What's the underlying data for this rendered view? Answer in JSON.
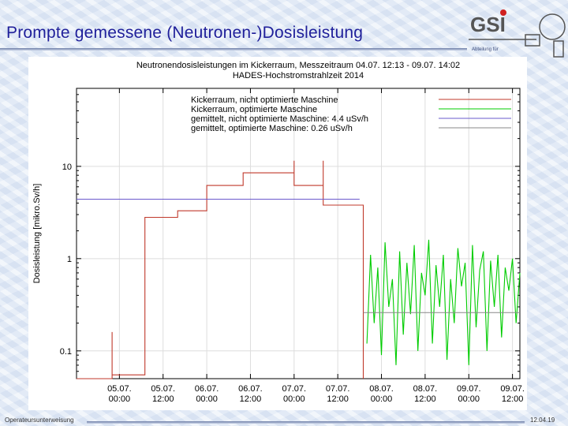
{
  "slide": {
    "title": "Prompte gemessene (Neutronen-)Dosisleistung",
    "logo_text": "GSI",
    "logo_subtext": "Abteilung für",
    "footer_left": "Operateursunterweisung",
    "footer_right": "12.04.19"
  },
  "colors": {
    "title": "#1f1f9a",
    "red_series": "#c0392b",
    "green_series": "#00cc00",
    "blue_series": "#6a5acd",
    "gray_series": "#888888"
  },
  "chart_data": {
    "type": "line",
    "title": "Neutronendosisleistungen im Kickerraum, Messzeitraum 04.07. 12:13 - 09.07. 14:02",
    "subtitle": "HADES-Hochstromstrahlzeit 2014",
    "xlabel": "",
    "ylabel": "Dosisleistung [mikro.Sv/h]",
    "yscale": "log",
    "ylim": [
      0.05,
      70
    ],
    "xlim": [
      "04.07. 12:13",
      "09.07. 14:02"
    ],
    "grid": true,
    "legend_position": "top-left",
    "x_ticks": [
      {
        "line1": "05.07.",
        "line2": "00:00",
        "t": "05.07. 00:00"
      },
      {
        "line1": "05.07.",
        "line2": "12:00",
        "t": "05.07. 12:00"
      },
      {
        "line1": "06.07.",
        "line2": "00:00",
        "t": "06.07. 00:00"
      },
      {
        "line1": "06.07.",
        "line2": "12:00",
        "t": "06.07. 12:00"
      },
      {
        "line1": "07.07.",
        "line2": "00:00",
        "t": "07.07. 00:00"
      },
      {
        "line1": "07.07.",
        "line2": "12:00",
        "t": "07.07. 12:00"
      },
      {
        "line1": "08.07.",
        "line2": "00:00",
        "t": "08.07. 00:00"
      },
      {
        "line1": "08.07.",
        "line2": "12:00",
        "t": "08.07. 12:00"
      },
      {
        "line1": "09.07.",
        "line2": "00:00",
        "t": "09.07. 00:00"
      },
      {
        "line1": "09.07.",
        "line2": "12:00",
        "t": "09.07. 12:00"
      }
    ],
    "y_ticks": [
      {
        "label": "0.1",
        "value": 0.1
      },
      {
        "label": "1",
        "value": 1
      },
      {
        "label": "10",
        "value": 10
      }
    ],
    "series": [
      {
        "name": "Kickerraum, nicht optimierte Maschine",
        "color": "#c0392b",
        "style": "step",
        "points": [
          [
            "04.07. 12:13",
            0.04
          ],
          [
            "04.07. 22:00",
            0.04
          ],
          [
            "04.07. 22:00",
            0.16
          ],
          [
            "04.07. 22:00",
            0.055
          ],
          [
            "05.07. 07:00",
            0.055
          ],
          [
            "05.07. 07:00",
            2.8
          ],
          [
            "05.07. 16:00",
            2.8
          ],
          [
            "05.07. 16:00",
            3.3
          ],
          [
            "06.07. 00:00",
            3.3
          ],
          [
            "06.07. 00:00",
            6.2
          ],
          [
            "06.07. 10:00",
            6.2
          ],
          [
            "06.07. 10:00",
            8.5
          ],
          [
            "07.07. 00:00",
            8.5
          ],
          [
            "07.07. 00:00",
            11.5
          ],
          [
            "07.07. 00:00",
            6.2
          ],
          [
            "07.07. 08:00",
            6.2
          ],
          [
            "07.07. 08:00",
            11.5
          ],
          [
            "07.07. 08:00",
            3.8
          ],
          [
            "07.07. 19:00",
            3.8
          ],
          [
            "07.07. 19:00",
            0.04
          ]
        ]
      },
      {
        "name": "Kickerraum, optimierte Maschine",
        "color": "#00cc00",
        "style": "spiky",
        "points": [
          [
            "07.07. 20:00",
            0.12
          ],
          [
            "07.07. 21:00",
            1.1
          ],
          [
            "07.07. 22:00",
            0.2
          ],
          [
            "07.07. 23:00",
            0.8
          ],
          [
            "08.07. 00:00",
            0.09
          ],
          [
            "08.07. 01:00",
            1.5
          ],
          [
            "08.07. 02:00",
            0.3
          ],
          [
            "08.07. 03:00",
            0.6
          ],
          [
            "08.07. 04:00",
            0.07
          ],
          [
            "08.07. 05:00",
            1.2
          ],
          [
            "08.07. 06:00",
            0.15
          ],
          [
            "08.07. 07:00",
            0.9
          ],
          [
            "08.07. 08:00",
            0.25
          ],
          [
            "08.07. 09:00",
            1.4
          ],
          [
            "08.07. 10:00",
            0.1
          ],
          [
            "08.07. 11:00",
            0.7
          ],
          [
            "08.07. 12:00",
            0.4
          ],
          [
            "08.07. 13:00",
            1.6
          ],
          [
            "08.07. 14:00",
            0.12
          ],
          [
            "08.07. 15:00",
            0.85
          ],
          [
            "08.07. 16:00",
            0.3
          ],
          [
            "08.07. 17:00",
            1.1
          ],
          [
            "08.07. 18:00",
            0.08
          ],
          [
            "08.07. 19:00",
            0.6
          ],
          [
            "08.07. 20:00",
            0.2
          ],
          [
            "08.07. 21:00",
            1.3
          ],
          [
            "08.07. 22:00",
            0.5
          ],
          [
            "08.07. 23:00",
            0.9
          ],
          [
            "09.07. 00:00",
            0.07
          ],
          [
            "09.07. 01:00",
            1.4
          ],
          [
            "09.07. 02:00",
            0.18
          ],
          [
            "09.07. 03:00",
            0.75
          ],
          [
            "09.07. 04:00",
            1.2
          ],
          [
            "09.07. 05:00",
            0.1
          ],
          [
            "09.07. 06:00",
            0.95
          ],
          [
            "09.07. 07:00",
            0.3
          ],
          [
            "09.07. 08:00",
            1.1
          ],
          [
            "09.07. 09:00",
            0.14
          ],
          [
            "09.07. 10:00",
            0.8
          ],
          [
            "09.07. 11:00",
            0.45
          ],
          [
            "09.07. 12:00",
            1.0
          ],
          [
            "09.07. 13:00",
            0.2
          ],
          [
            "09.07. 14:02",
            0.7
          ]
        ]
      },
      {
        "name": "gemittelt, nicht optimierte Maschine: 4.4 uSv/h",
        "color": "#6a5acd",
        "style": "hline",
        "value": 4.4,
        "x_range": [
          "04.07. 12:13",
          "07.07. 18:00"
        ]
      },
      {
        "name": "gemittelt, optimierte Maschine: 0.26 uSv/h",
        "color": "#888888",
        "style": "hline",
        "value": 0.26,
        "x_range": [
          "07.07. 19:00",
          "09.07. 14:02"
        ]
      }
    ]
  }
}
